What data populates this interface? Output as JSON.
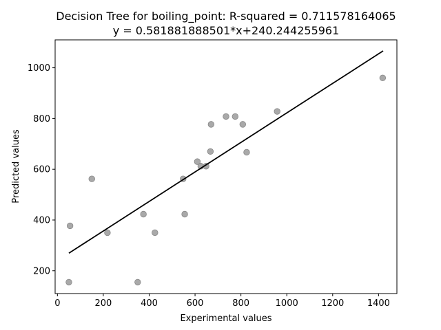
{
  "chart_data": {
    "type": "scatter",
    "title_line1": "Decision Tree for boiling_point: R-squared = 0.711578164065",
    "title_line2": "y = 0.581881888501*x+240.244255961",
    "xlabel": "Experimental values",
    "ylabel": "Predicted values",
    "xlim": [
      -10,
      1480
    ],
    "ylim": [
      110,
      1110
    ],
    "x_ticks": [
      0,
      200,
      400,
      600,
      800,
      1000,
      1200,
      1400
    ],
    "y_ticks": [
      200,
      400,
      600,
      800,
      1000
    ],
    "grid": false,
    "point_color": "#a0a0a0",
    "point_edge_color": "#888888",
    "line_color": "#000000",
    "fit_line": {
      "slope": 0.581881888501,
      "intercept": 240.244255961,
      "x_range": [
        50,
        1420
      ]
    },
    "points": [
      {
        "x": 50,
        "y": 155
      },
      {
        "x": 350,
        "y": 155
      },
      {
        "x": 55,
        "y": 377
      },
      {
        "x": 150,
        "y": 562
      },
      {
        "x": 218,
        "y": 350
      },
      {
        "x": 375,
        "y": 423
      },
      {
        "x": 425,
        "y": 350
      },
      {
        "x": 548,
        "y": 562
      },
      {
        "x": 555,
        "y": 423
      },
      {
        "x": 610,
        "y": 630
      },
      {
        "x": 625,
        "y": 612
      },
      {
        "x": 648,
        "y": 612
      },
      {
        "x": 667,
        "y": 670
      },
      {
        "x": 670,
        "y": 777
      },
      {
        "x": 735,
        "y": 808
      },
      {
        "x": 775,
        "y": 808
      },
      {
        "x": 808,
        "y": 777
      },
      {
        "x": 825,
        "y": 667
      },
      {
        "x": 958,
        "y": 828
      },
      {
        "x": 1418,
        "y": 960
      }
    ]
  }
}
